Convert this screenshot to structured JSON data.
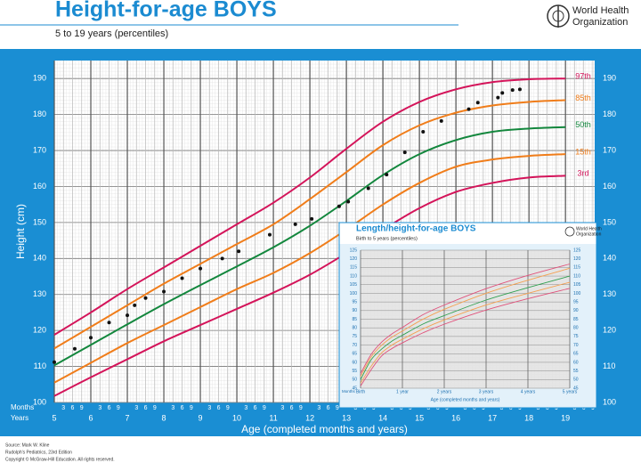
{
  "header": {
    "title": "Height-for-age  BOYS",
    "subtitle": "5 to 19 years (percentiles)",
    "org": [
      "World Health",
      "Organization"
    ]
  },
  "chart_data": [
    {
      "type": "line",
      "y_label": "Height (cm)",
      "x_label": "Age (completed months and years)",
      "months_label": "Months",
      "years_label": "Years",
      "xlim": [
        5,
        19.8
      ],
      "xticks": [
        5,
        6,
        7,
        8,
        9,
        10,
        11,
        12,
        13,
        14,
        15,
        16,
        17,
        18,
        19
      ],
      "minor_xticks": [
        {
          "value": 5.25,
          "label": "3"
        },
        {
          "value": 5.5,
          "label": "6"
        },
        {
          "value": 5.75,
          "label": "9"
        },
        {
          "value": 6.25,
          "label": "3"
        },
        {
          "value": 6.5,
          "label": "6"
        },
        {
          "value": 6.75,
          "label": "9"
        },
        {
          "value": 7.25,
          "label": "3"
        },
        {
          "value": 7.5,
          "label": "6"
        },
        {
          "value": 7.75,
          "label": "9"
        },
        {
          "value": 8.25,
          "label": "3"
        },
        {
          "value": 8.5,
          "label": "6"
        },
        {
          "value": 8.75,
          "label": "9"
        },
        {
          "value": 9.25,
          "label": "3"
        },
        {
          "value": 9.5,
          "label": "6"
        },
        {
          "value": 9.75,
          "label": "9"
        },
        {
          "value": 10.25,
          "label": "3"
        },
        {
          "value": 10.5,
          "label": "6"
        },
        {
          "value": 10.75,
          "label": "9"
        },
        {
          "value": 11.25,
          "label": "3"
        },
        {
          "value": 11.5,
          "label": "6"
        },
        {
          "value": 11.75,
          "label": "9"
        },
        {
          "value": 12.25,
          "label": "3"
        },
        {
          "value": 12.5,
          "label": "6"
        },
        {
          "value": 12.75,
          "label": "9"
        },
        {
          "value": 13.25,
          "label": "3"
        },
        {
          "value": 13.5,
          "label": "6"
        },
        {
          "value": 13.75,
          "label": "9"
        },
        {
          "value": 14.25,
          "label": "3"
        },
        {
          "value": 14.5,
          "label": "6"
        },
        {
          "value": 14.75,
          "label": "9"
        },
        {
          "value": 15.25,
          "label": "3"
        },
        {
          "value": 15.5,
          "label": "6"
        },
        {
          "value": 15.75,
          "label": "9"
        },
        {
          "value": 16.25,
          "label": "3"
        },
        {
          "value": 16.5,
          "label": "6"
        },
        {
          "value": 16.75,
          "label": "9"
        },
        {
          "value": 17.25,
          "label": "3"
        },
        {
          "value": 17.5,
          "label": "6"
        },
        {
          "value": 17.75,
          "label": "9"
        },
        {
          "value": 18.25,
          "label": "3"
        },
        {
          "value": 18.5,
          "label": "6"
        },
        {
          "value": 18.75,
          "label": "9"
        },
        {
          "value": 19.25,
          "label": "3"
        },
        {
          "value": 19.5,
          "label": "6"
        },
        {
          "value": 19.75,
          "label": "9"
        }
      ],
      "ylim": [
        100,
        195
      ],
      "yticks": [
        100,
        110,
        120,
        130,
        140,
        150,
        160,
        170,
        180,
        190
      ],
      "grid": true,
      "x": [
        5,
        6,
        7,
        8,
        9,
        10,
        11,
        12,
        13,
        14,
        15,
        16,
        17,
        18,
        19
      ],
      "series": [
        {
          "name": "97th",
          "color": "#d4145a",
          "values": [
            118.8,
            125,
            131.5,
            137.5,
            143.5,
            149.5,
            155.5,
            162.5,
            170.5,
            178,
            183.5,
            187,
            189,
            189.8,
            190
          ]
        },
        {
          "name": "85th",
          "color": "#f07d1a",
          "values": [
            115,
            121,
            127,
            133,
            138.5,
            144,
            149.5,
            156.5,
            164,
            171.5,
            177,
            180.5,
            182.5,
            183.5,
            184
          ]
        },
        {
          "name": "50th",
          "color": "#13873d",
          "values": [
            110.3,
            116,
            121.7,
            127.3,
            132.6,
            137.8,
            143.1,
            149.1,
            156,
            163.2,
            169,
            172.9,
            175.2,
            176.1,
            176.5
          ]
        },
        {
          "name": "15th",
          "color": "#f07d1a",
          "values": [
            105.5,
            111,
            116.5,
            121.5,
            126.5,
            131.5,
            136,
            141.5,
            148,
            155,
            161,
            165.5,
            167.5,
            168.5,
            169
          ]
        },
        {
          "name": "3rd",
          "color": "#d4145a",
          "values": [
            101.8,
            107,
            112,
            117,
            121.5,
            126,
            130.5,
            135.5,
            141.5,
            148,
            154,
            158.5,
            161,
            162.5,
            163
          ]
        }
      ],
      "points": {
        "color": "#111111",
        "x": [
          5,
          5.56,
          6,
          6.5,
          7,
          7.2,
          7.5,
          8,
          8.5,
          9,
          9.6,
          10.05,
          10.9,
          11.6,
          12.05,
          12.8,
          13.05,
          13.6,
          14.1,
          14.6,
          15.1,
          15.6,
          16.35,
          16.6,
          17.15,
          17.27,
          17.55,
          17.75
        ],
        "y": [
          111.2,
          114.9,
          118,
          122.2,
          124.2,
          127,
          129,
          130.8,
          134.5,
          137.2,
          140,
          142,
          146.6,
          149.5,
          151,
          154.5,
          155.8,
          159.5,
          163.3,
          169.5,
          175.2,
          178.2,
          181.5,
          183.3,
          184.7,
          186,
          186.8,
          187
        ]
      }
    },
    {
      "type": "line",
      "title": "Length/height-for-age BOYS",
      "subtitle": "Birth to 5 years (percentiles)",
      "org": [
        "World Health",
        "Organization"
      ],
      "x_label": "Age (completed months and years)",
      "months_label": "Months",
      "xlim": [
        0,
        60
      ],
      "xticks": [
        {
          "value": 0,
          "label": "Birth"
        },
        {
          "value": 12,
          "label": "1 year"
        },
        {
          "value": 24,
          "label": "2 years"
        },
        {
          "value": 36,
          "label": "3 years"
        },
        {
          "value": 48,
          "label": "4 years"
        },
        {
          "value": 60,
          "label": "5 years"
        }
      ],
      "ylim": [
        45,
        125
      ],
      "yticks": [
        45,
        50,
        55,
        60,
        65,
        70,
        75,
        80,
        85,
        90,
        95,
        100,
        105,
        110,
        115,
        120,
        125
      ],
      "grid": true,
      "x": [
        0,
        3,
        6,
        9,
        12,
        18,
        24,
        36,
        48,
        60
      ],
      "series": [
        {
          "name": "97th",
          "color": "#e0507a",
          "values": [
            53.4,
            64.5,
            71.6,
            76.5,
            80.2,
            87.7,
            93.2,
            102.7,
            110.4,
            117
          ]
        },
        {
          "name": "85th",
          "color": "#f5a050",
          "values": [
            51.8,
            63,
            69.8,
            74.6,
            78.1,
            85.1,
            90.7,
            100,
            107.6,
            114.5
          ]
        },
        {
          "name": "50th",
          "color": "#30a050",
          "values": [
            49.9,
            61.4,
            67.6,
            72.3,
            75.7,
            82.3,
            87.1,
            96.1,
            103.3,
            110
          ]
        },
        {
          "name": "15th",
          "color": "#f5a050",
          "values": [
            47.9,
            57.6,
            65.4,
            70,
            73.4,
            79.5,
            84.6,
            93.2,
            100,
            106.4
          ]
        },
        {
          "name": "3rd",
          "color": "#e0507a",
          "values": [
            46.3,
            55.6,
            63.6,
            68,
            71.3,
            77.2,
            82.1,
            90.3,
            96.9,
            102.9
          ]
        }
      ]
    }
  ],
  "footer": [
    "Source: Mark W. Kline",
    "Rudolph's Pediatrics, 23rd Edition",
    "Copyright © McGraw-Hill Education. All rights reserved."
  ]
}
